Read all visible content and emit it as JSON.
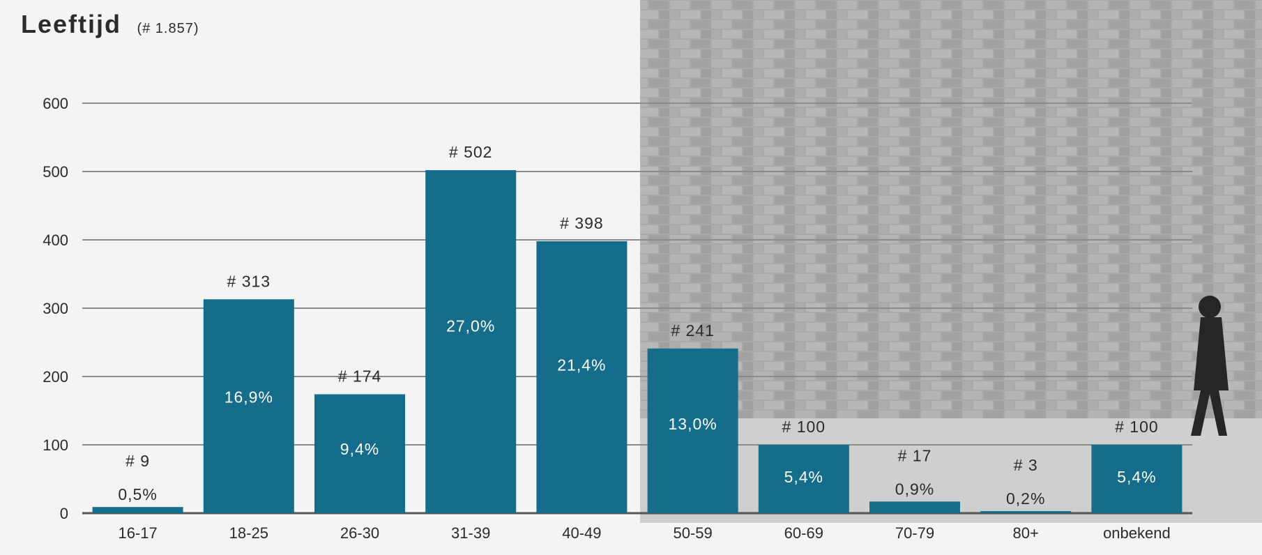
{
  "header": {
    "title": "Leeftijd",
    "subtitle": "(# 1.857)"
  },
  "colors": {
    "bar": "#136d8b",
    "grid": "#8a8a8a",
    "text": "#2b2b2b",
    "inside_label": "#ffffff"
  },
  "chart_data": {
    "type": "bar",
    "title": "Leeftijd",
    "subtitle": "(# 1.857)",
    "xlabel": "",
    "ylabel": "",
    "ylim": [
      0,
      600
    ],
    "yticks": [
      0,
      100,
      200,
      300,
      400,
      500,
      600
    ],
    "grid": true,
    "categories": [
      "16-17",
      "18-25",
      "26-30",
      "31-39",
      "40-49",
      "50-59",
      "60-69",
      "70-79",
      "80+",
      "onbekend"
    ],
    "values": [
      9,
      313,
      174,
      502,
      398,
      241,
      100,
      17,
      3,
      100
    ],
    "count_labels": [
      "# 9",
      "# 313",
      "# 174",
      "# 502",
      "# 398",
      "# 241",
      "# 100",
      "# 17",
      "# 3",
      "# 100"
    ],
    "percent_labels": [
      "0,5%",
      "16,9%",
      "9,4%",
      "27,0%",
      "21,4%",
      "13,0%",
      "5,4%",
      "0,9%",
      "0,2%",
      "5,4%"
    ]
  }
}
